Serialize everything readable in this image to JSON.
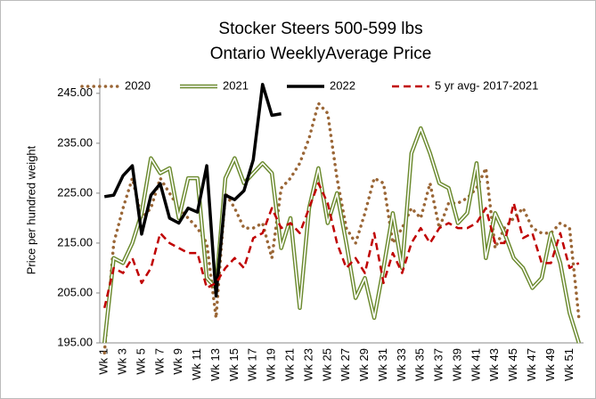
{
  "chart_data": {
    "type": "line",
    "title": "Stocker Steers 500-599 lbs",
    "subtitle": "Ontario WeeklyAverage Price",
    "y_label": "Price per hundred weight",
    "legend": "top",
    "grid": false,
    "categories": [
      "Wk 1",
      null,
      "Wk 3",
      null,
      "Wk 5",
      null,
      "Wk 7",
      null,
      "Wk 9",
      null,
      "Wk 11",
      null,
      "Wk 13",
      null,
      "Wk 15",
      null,
      "Wk 17",
      null,
      "Wk 19",
      null,
      "Wk 21",
      null,
      "Wk 23",
      null,
      "Wk 25",
      null,
      "Wk 27",
      null,
      "Wk 29",
      null,
      "Wk 31",
      null,
      "Wk 33",
      null,
      "Wk 35",
      null,
      "Wk 37",
      null,
      "Wk 39",
      null,
      "Wk 41",
      null,
      "Wk 43",
      null,
      "Wk 45",
      null,
      "Wk 47",
      null,
      "Wk 49",
      null,
      "Wk 51",
      null
    ],
    "ylim": [
      195,
      248
    ],
    "yticks": [
      {
        "value": 195,
        "label": "195.00"
      },
      {
        "value": 205,
        "label": "205.00"
      },
      {
        "value": 215,
        "label": "215.00"
      },
      {
        "value": 225,
        "label": "225.00"
      },
      {
        "value": 235,
        "label": "235.00"
      },
      {
        "value": 245,
        "label": "245.00"
      }
    ],
    "series": [
      {
        "name": "2020",
        "color": "#9a6636",
        "style": "dotted",
        "values": [
          193,
          215,
          222,
          228,
          220,
          222,
          228,
          225,
          222,
          220,
          218,
          215,
          200,
          225,
          222,
          218,
          218,
          219,
          212,
          226,
          228,
          231,
          236,
          243,
          241,
          228,
          218,
          215,
          221,
          228,
          227,
          215,
          218,
          222,
          220,
          227,
          218,
          223,
          223,
          224,
          226,
          230,
          214,
          218,
          220,
          222,
          218,
          217,
          217,
          219,
          218,
          200
        ]
      },
      {
        "name": "2021",
        "color": "#6b8a2e",
        "style": "double",
        "values": [
          195,
          212,
          211,
          215,
          221,
          232,
          229,
          230,
          220,
          228,
          228,
          208,
          206,
          228,
          232,
          227,
          229,
          231,
          229,
          214,
          220,
          202,
          222,
          230,
          219,
          225,
          215,
          204,
          208,
          200,
          210,
          221,
          210,
          233,
          238,
          233,
          227,
          226,
          219,
          221,
          231,
          212,
          221,
          217,
          212,
          210,
          206,
          208,
          217,
          211,
          201,
          195
        ]
      },
      {
        "name": "2022",
        "color": "#000000",
        "style": "solid",
        "values": [
          224.3,
          224.6,
          228.5,
          230.5,
          216.8,
          224.6,
          226.9,
          220,
          219,
          222,
          221.2,
          230.5,
          204.4,
          224.6,
          223.7,
          225.5,
          231.7,
          246.8,
          240.6,
          240.9,
          null,
          null,
          null,
          null,
          null,
          null,
          null,
          null,
          null,
          null,
          null,
          null,
          null,
          null,
          null,
          null,
          null,
          null,
          null,
          null,
          null,
          null,
          null,
          null,
          null,
          null,
          null,
          null,
          null,
          null,
          null,
          null
        ]
      },
      {
        "name": "5 yr avg- 2017-2021",
        "color": "#c00000",
        "style": "dashed",
        "values": [
          202,
          210,
          209,
          212,
          207,
          210,
          217,
          215,
          214,
          213,
          213,
          206,
          207,
          210,
          212,
          210,
          216,
          217,
          222,
          218,
          219,
          217,
          222,
          227,
          223,
          215,
          210,
          212,
          209,
          217,
          207,
          213,
          209,
          215,
          218,
          215,
          218,
          219,
          218,
          218,
          219,
          222,
          215,
          215,
          223,
          216,
          217,
          211,
          211,
          217,
          210,
          211
        ]
      }
    ]
  }
}
